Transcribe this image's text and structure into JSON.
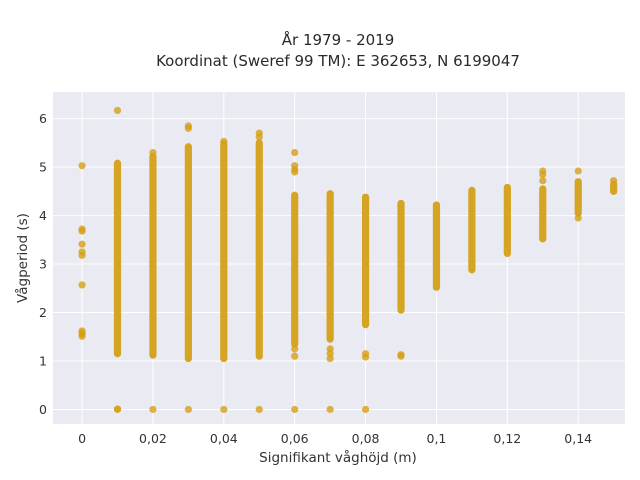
{
  "chart_data": {
    "type": "scatter",
    "title_lines": [
      "År 1979 - 2019",
      "Koordinat (Sweref 99 TM): E 362653, N 6199047"
    ],
    "xlabel": "Signifikant våghöjd (m)",
    "ylabel": "Vågperiod (s)",
    "xlim": [
      -0.0082,
      0.1532
    ],
    "ylim": [
      -0.3,
      6.55
    ],
    "x_ticks": [
      0,
      0.02,
      0.04,
      0.06,
      0.08,
      0.1,
      0.12,
      0.14
    ],
    "x_tick_labels": [
      "0",
      "0,02",
      "0,04",
      "0,06",
      "0,08",
      "0,1",
      "0,12",
      "0,14"
    ],
    "y_ticks": [
      0,
      1,
      2,
      3,
      4,
      5,
      6
    ],
    "y_tick_labels": [
      "0",
      "1",
      "2",
      "3",
      "4",
      "5",
      "6"
    ],
    "grid": true,
    "marker_color": "#D4A017",
    "plot_background": "#EAEAF2",
    "columns": [
      {
        "x": 0,
        "segments": [],
        "points": [
          5.03,
          3.72,
          3.68,
          3.41,
          3.25,
          3.18,
          2.57,
          1.62,
          1.58,
          1.55,
          1.51
        ]
      },
      {
        "x": 0.01,
        "segments": [
          [
            1.15,
            5.08
          ]
        ],
        "points": [
          6.17,
          0.0,
          0.01
        ]
      },
      {
        "x": 0.02,
        "segments": [
          [
            1.12,
            5.22
          ]
        ],
        "points": [
          5.3,
          0.0
        ]
      },
      {
        "x": 0.03,
        "segments": [
          [
            1.05,
            5.42
          ]
        ],
        "points": [
          5.85,
          5.8,
          0.0
        ]
      },
      {
        "x": 0.04,
        "segments": [
          [
            1.05,
            5.48
          ]
        ],
        "points": [
          5.53,
          0.0
        ]
      },
      {
        "x": 0.05,
        "segments": [
          [
            1.1,
            5.5
          ]
        ],
        "points": [
          5.7,
          5.62,
          0.0
        ]
      },
      {
        "x": 0.06,
        "segments": [
          [
            1.35,
            4.42
          ]
        ],
        "points": [
          5.3,
          5.03,
          4.95,
          4.9,
          1.25,
          1.1,
          0.0
        ]
      },
      {
        "x": 0.07,
        "segments": [
          [
            1.45,
            4.45
          ]
        ],
        "points": [
          1.25,
          1.15,
          1.05,
          0.0
        ]
      },
      {
        "x": 0.08,
        "segments": [
          [
            1.75,
            4.38
          ]
        ],
        "points": [
          1.15,
          1.08,
          0.0
        ]
      },
      {
        "x": 0.09,
        "segments": [
          [
            2.05,
            4.25
          ]
        ],
        "points": [
          1.13,
          1.1
        ]
      },
      {
        "x": 0.1,
        "segments": [
          [
            2.52,
            4.22
          ]
        ],
        "points": []
      },
      {
        "x": 0.11,
        "segments": [
          [
            2.88,
            4.52
          ]
        ],
        "points": []
      },
      {
        "x": 0.12,
        "segments": [
          [
            3.22,
            4.58
          ]
        ],
        "points": []
      },
      {
        "x": 0.13,
        "segments": [
          [
            3.52,
            4.55
          ]
        ],
        "points": [
          4.92,
          4.85,
          4.72
        ]
      },
      {
        "x": 0.14,
        "segments": [
          [
            4.05,
            4.7
          ]
        ],
        "points": [
          4.92,
          3.95
        ]
      },
      {
        "x": 0.15,
        "segments": [
          [
            4.5,
            4.65
          ]
        ],
        "points": [
          4.72
        ]
      }
    ]
  }
}
